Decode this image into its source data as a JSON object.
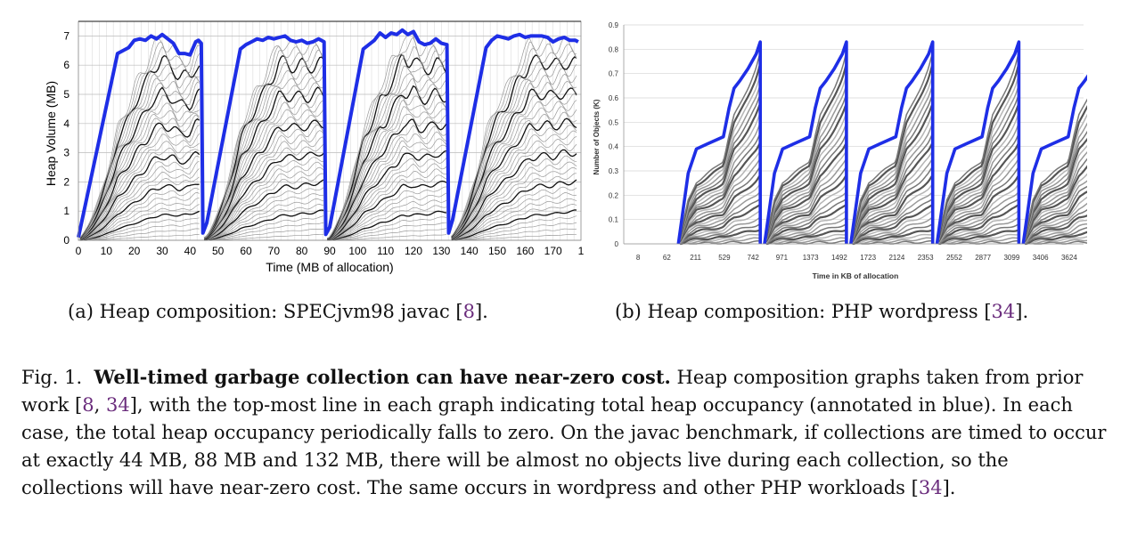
{
  "chart_data": [
    {
      "type": "line",
      "xlabel": "Time (MB of allocation)",
      "ylabel": "Heap Volume (MB)",
      "xlim": [
        0,
        180
      ],
      "ylim": [
        0,
        7.5
      ],
      "xticks": [
        "0",
        "10",
        "20",
        "30",
        "40",
        "50",
        "60",
        "70",
        "80",
        "90",
        "100",
        "110",
        "120",
        "130",
        "140",
        "150",
        "160",
        "170",
        "1"
      ],
      "yticks": [
        "0",
        "1",
        "2",
        "3",
        "4",
        "5",
        "6",
        "7"
      ],
      "grid": true,
      "total_color": "#1e2ee6",
      "cycle_boundaries": [
        0,
        44.5,
        88.5,
        133,
        179
      ],
      "total_series": {
        "name": "total heap occupancy",
        "x": [
          0,
          14,
          18,
          20,
          22,
          24,
          26,
          28,
          30,
          32,
          34,
          36,
          38,
          40,
          42,
          43,
          44,
          44.6,
          46,
          58,
          60,
          62,
          64,
          66,
          68,
          70,
          72,
          74,
          76,
          78,
          80,
          82,
          84,
          86,
          88,
          88.6,
          90,
          102,
          104,
          106,
          108,
          110,
          112,
          114,
          116,
          118,
          120,
          122,
          124,
          126,
          128,
          130,
          132,
          132.6,
          134,
          146,
          148,
          150,
          152,
          154,
          156,
          158,
          160,
          162,
          164,
          166,
          168,
          170,
          172,
          174,
          176,
          178,
          179
        ],
        "y": [
          0.1,
          6.4,
          6.6,
          6.85,
          6.9,
          6.85,
          7.0,
          6.9,
          7.05,
          6.9,
          6.75,
          6.4,
          6.4,
          6.35,
          6.8,
          6.85,
          6.75,
          0.25,
          0.6,
          6.55,
          6.7,
          6.8,
          6.9,
          6.85,
          6.95,
          6.9,
          6.95,
          7.0,
          6.85,
          6.8,
          6.85,
          6.75,
          6.8,
          6.9,
          6.8,
          0.2,
          0.45,
          6.55,
          6.7,
          6.85,
          7.1,
          6.95,
          7.1,
          7.05,
          7.2,
          7.05,
          7.15,
          6.8,
          6.7,
          6.75,
          6.9,
          6.75,
          6.7,
          0.25,
          0.7,
          6.6,
          6.85,
          7.0,
          6.95,
          6.9,
          7.0,
          7.05,
          6.95,
          7.0,
          7.0,
          7.0,
          6.95,
          6.8,
          6.9,
          6.95,
          6.85,
          6.85,
          6.8
        ]
      }
    },
    {
      "type": "line",
      "xlabel": "Time in KB of allocation",
      "ylabel": "Number of Objects (K)",
      "ylim": [
        0,
        0.9
      ],
      "xticks": [
        "8",
        "62",
        "211",
        "529",
        "742",
        "971",
        "1373",
        "1492",
        "1723",
        "2124",
        "2353",
        "2552",
        "2877",
        "3099",
        "3406",
        "3624"
      ],
      "yticks": [
        "0",
        "0.1",
        "0.2",
        "0.3",
        "0.4",
        "0.5",
        "0.6",
        "0.7",
        "0.8",
        "0.9"
      ],
      "grid": true,
      "total_color": "#1e2ee6",
      "cycle_start_tick_index": 1.9,
      "cycle_period_ticks": 3,
      "cycle_count": 5,
      "total_series": {
        "name": "total object count",
        "x": [
          0,
          0.12,
          0.22,
          0.35,
          0.55,
          0.62,
          0.68,
          0.75,
          0.85,
          0.95,
          1.0
        ],
        "y": [
          0.0,
          0.29,
          0.39,
          0.41,
          0.44,
          0.56,
          0.64,
          0.67,
          0.72,
          0.78,
          0.83
        ]
      }
    }
  ],
  "subcaptions": {
    "a": {
      "text": "(a) Heap composition: SPECjvm98 javac [",
      "ref": "8",
      "end": "]."
    },
    "b": {
      "text": "(b) Heap composition: PHP wordpress [",
      "ref": "34",
      "end": "]."
    }
  },
  "caption": {
    "fig": "Fig. 1.",
    "lead": "Well-timed garbage collection can have near-zero cost.",
    "t1": " Heap composition graphs taken from prior work [",
    "ref1": "8",
    "t2": ", ",
    "ref2": "34",
    "t3": "], with the top-most line in each graph indicating total heap occupancy (annotated in blue). In each case, the total heap occupancy periodically falls to zero. On the javac benchmark, if collections are timed to occur at exactly 44 MB, 88 MB and 132 MB, there will be almost no objects live during each collection, so the collections will have near-zero cost. The same occurs in wordpress and other PHP workloads [",
    "ref3": "34",
    "t4": "]."
  }
}
